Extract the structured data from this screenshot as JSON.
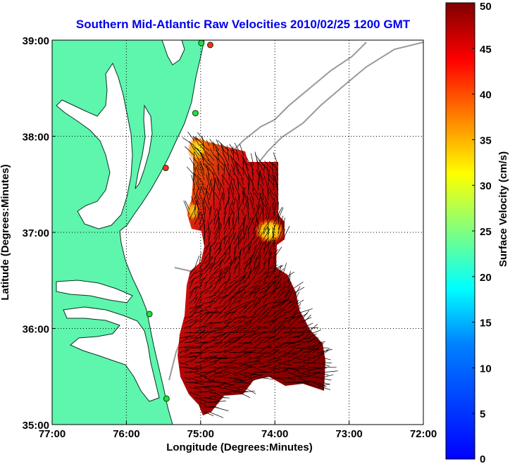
{
  "chart_data": {
    "type": "map-vector-field",
    "title": "Southern Mid-Atlantic Raw Velocities 2010/02/25 1200 GMT",
    "xlabel": "Longitude (Degrees:Minutes)",
    "ylabel": "Latitude (Degrees:Minutes)",
    "xlim": [
      -77,
      -72
    ],
    "ylim": [
      35,
      39
    ],
    "x_ticks": [
      -77,
      -76,
      -75,
      -74,
      -73,
      -72
    ],
    "x_tick_labels": [
      "77:00",
      "76:00",
      "75:00",
      "74:00",
      "73:00",
      "72:00"
    ],
    "y_ticks": [
      35,
      36,
      37,
      38,
      39
    ],
    "y_tick_labels": [
      "35:00",
      "36:00",
      "37:00",
      "38:00",
      "39:00"
    ],
    "grid": true,
    "land_color": "#5ef5ad",
    "colorbar": {
      "label": "Surface Velocity (cm/s)",
      "min": 0,
      "max": 50,
      "ticks": [
        0,
        5,
        10,
        15,
        20,
        25,
        30,
        35,
        40,
        45,
        50
      ],
      "tick_labels": [
        "0",
        "5",
        "10",
        "15",
        "20",
        "25",
        "30",
        "35",
        "40",
        "45",
        "50"
      ],
      "colormap": "jet"
    },
    "stations": [
      {
        "lon": -74.87,
        "lat": 38.95,
        "color": "#ff2a2a"
      },
      {
        "lon": -74.99,
        "lat": 38.97,
        "color": "#22dd44"
      },
      {
        "lon": -75.07,
        "lat": 38.24,
        "color": "#22dd44"
      },
      {
        "lon": -75.47,
        "lat": 37.67,
        "color": "#ff2a2a"
      },
      {
        "lon": -75.69,
        "lat": 36.15,
        "color": "#22dd44"
      },
      {
        "lon": -75.46,
        "lat": 35.27,
        "color": "#22dd44"
      }
    ]
  }
}
